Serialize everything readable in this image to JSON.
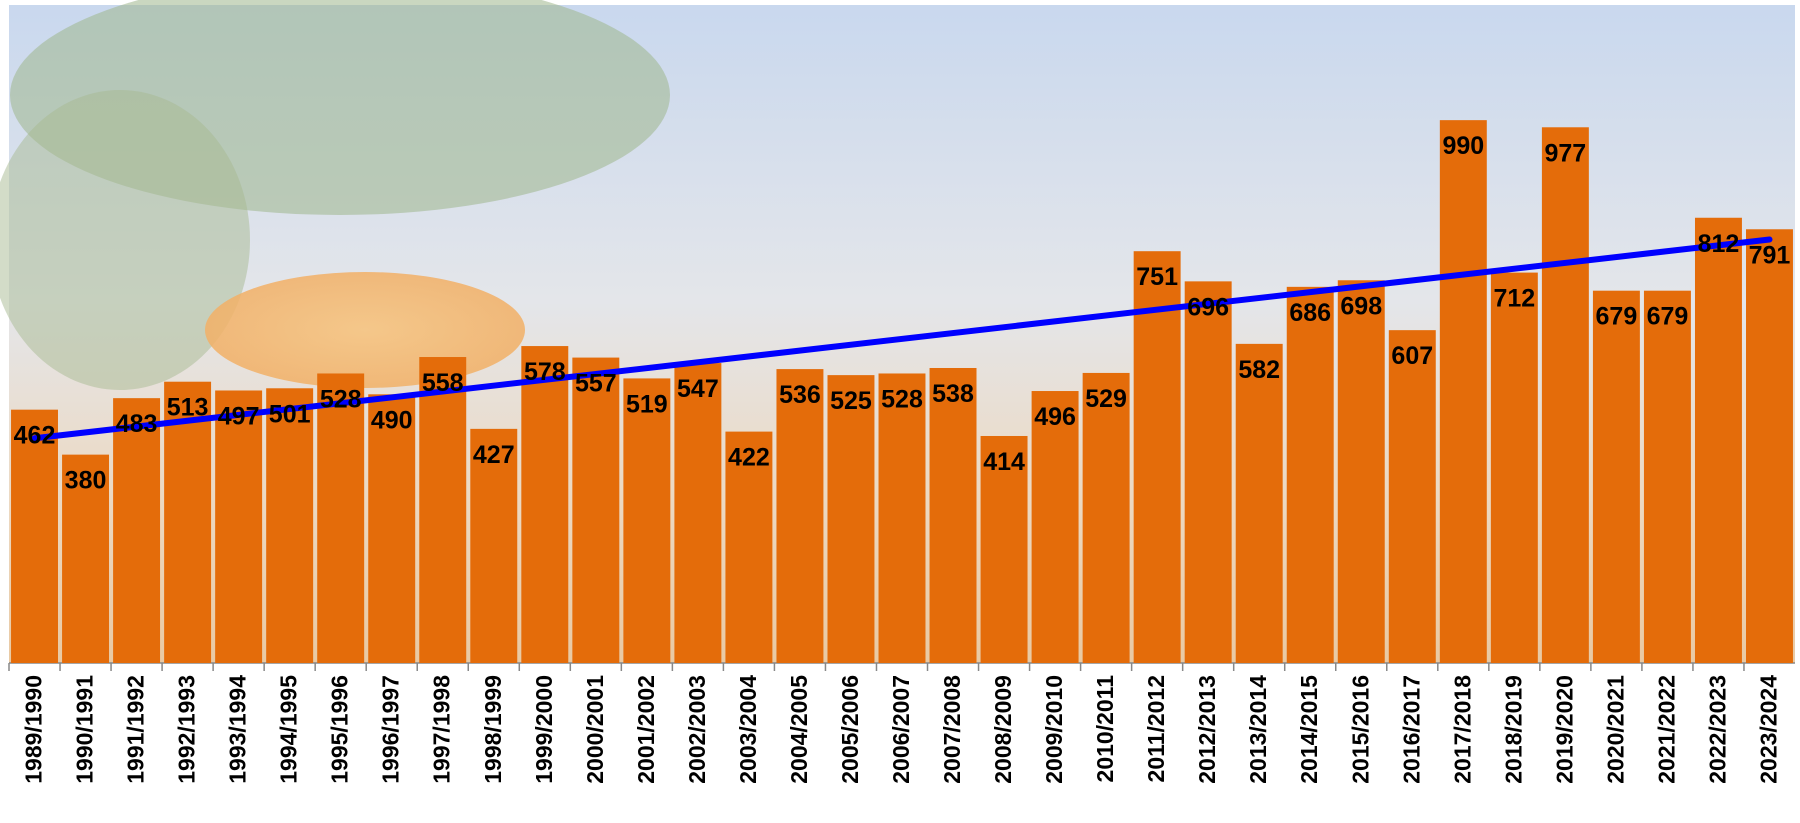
{
  "chart_data": {
    "type": "bar",
    "categories": [
      "1989/1990",
      "1990/1991",
      "1991/1992",
      "1992/1993",
      "1993/1994",
      "1994/1995",
      "1995/1996",
      "1996/1997",
      "1997/1998",
      "1998/1999",
      "1999/2000",
      "2000/2001",
      "2001/2002",
      "2002/2003",
      "2003/2004",
      "2004/2005",
      "2005/2006",
      "2006/2007",
      "2007/2008",
      "2008/2009",
      "2009/2010",
      "2010/2011",
      "2011/2012",
      "2012/2013",
      "2013/2014",
      "2014/2015",
      "2015/2016",
      "2016/2017",
      "2017/2018",
      "2018/2019",
      "2019/2020",
      "2020/2021",
      "2021/2022",
      "2022/2023",
      "2023/2024"
    ],
    "values": [
      462,
      380,
      483,
      513,
      497,
      501,
      528,
      490,
      558,
      427,
      578,
      557,
      519,
      547,
      422,
      536,
      525,
      528,
      538,
      414,
      496,
      529,
      751,
      696,
      582,
      686,
      698,
      607,
      990,
      712,
      977,
      679,
      679,
      812,
      791
    ],
    "color": "#e46c0a",
    "trendline": true,
    "trendline_color": "#0000ff",
    "ylim": [
      0,
      1200
    ]
  }
}
